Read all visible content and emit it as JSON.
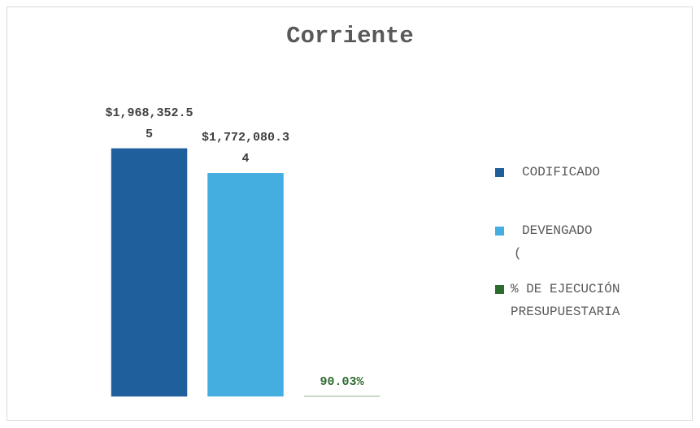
{
  "chart_data": {
    "type": "bar",
    "title": "Corriente",
    "series": [
      {
        "name": "CODIFICADO",
        "color": "#1f5f9c",
        "values": [
          1968352.55
        ],
        "value_labels": [
          "$1,968,352.55"
        ]
      },
      {
        "name": "DEVENGADO (",
        "color": "#45aee0",
        "values": [
          1772080.34
        ],
        "value_labels": [
          "$1,772,080.34"
        ]
      },
      {
        "name": "% DE EJECUCIÓN PRESUPUESTARIA",
        "color": "#2e6b2e",
        "values": [
          90.03
        ],
        "value_labels": [
          "90.03%"
        ]
      }
    ],
    "ylim": [
      0,
      2200000
    ],
    "legend": "right"
  }
}
